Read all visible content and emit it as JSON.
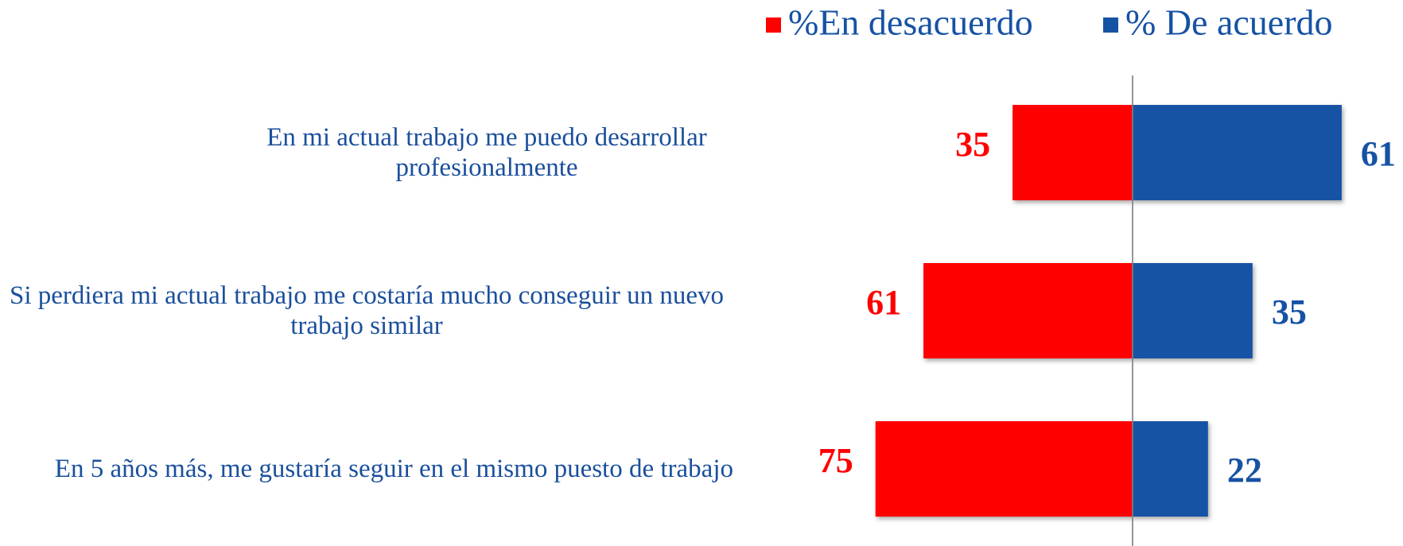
{
  "chart_data": {
    "type": "diverging_bar",
    "categories": [
      "En mi actual trabajo me puedo desarrollar profesionalmente",
      "Si perdiera mi actual trabajo me costaría mucho conseguir un nuevo trabajo similar",
      "En 5 años más, me gustaría seguir en el mismo puesto de trabajo"
    ],
    "series": [
      {
        "name": "%En desacuerdo",
        "color": "#ff0000",
        "values": [
          35,
          61,
          75
        ]
      },
      {
        "name": "% De acuerdo",
        "color": "#1652a4",
        "values": [
          61,
          35,
          22
        ]
      }
    ],
    "legend": "top-right"
  }
}
